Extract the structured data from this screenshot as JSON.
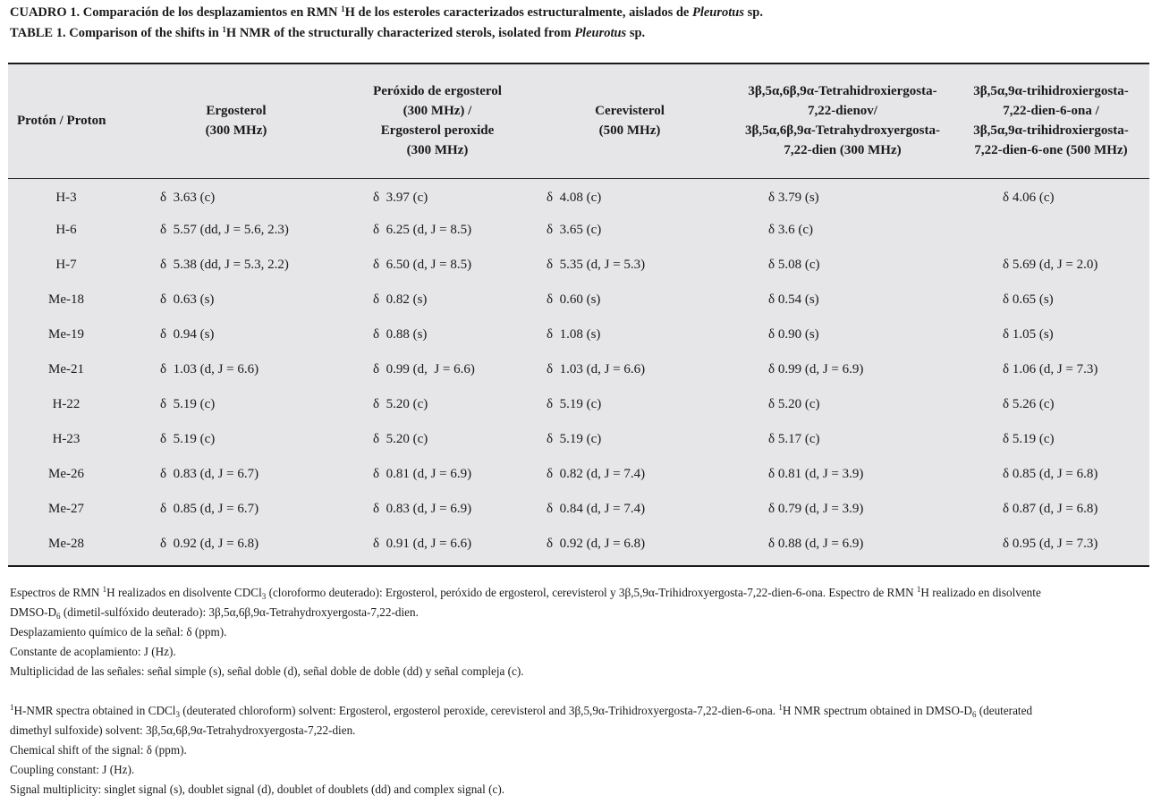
{
  "caption": {
    "es_label": "CUADRO 1.",
    "es_pre": " Comparación de los desplazamientos en RMN ",
    "es_sup": "1",
    "es_mid": "H de los esteroles caracterizados estructuralmente, aislados de ",
    "es_italic": "Pleurotus",
    "es_post": " sp.",
    "en_label": "TABLE 1.",
    "en_pre": " Comparison of the shifts in ",
    "en_sup": "1",
    "en_mid": "H NMR of the structurally characterized sterols, isolated from ",
    "en_italic": "Pleurotus",
    "en_post": " sp."
  },
  "table": {
    "headers": [
      [
        "Protón / Proton"
      ],
      [
        "Ergosterol",
        "(300 MHz)"
      ],
      [
        "Peróxido de ergosterol",
        "(300 MHz) /",
        "Ergosterol peroxide",
        "(300 MHz)"
      ],
      [
        "Cerevisterol",
        "(500 MHz)"
      ],
      [
        "3β,5α,6β,9α-Tetrahidroxiergosta-",
        "7,22-dienov/",
        "3β,5α,6β,9α-Tetrahydroxyergosta-",
        "7,22-dien (300 MHz)"
      ],
      [
        "3β,5α,9α-trihidroxiergosta-",
        "7,22-dien-6-ona /",
        "3β,5α,9α-trihidroxiergosta-",
        "7,22-dien-6-one (500 MHz)"
      ]
    ],
    "rows": [
      [
        "H-3",
        "δ  3.63 (c)",
        "δ  3.97 (c)",
        "δ  4.08 (c)",
        "δ 3.79 (s)",
        "δ 4.06 (c)"
      ],
      [
        "H-6",
        "δ  5.57 (dd, J = 5.6, 2.3)",
        "δ  6.25 (d, J = 8.5)",
        "δ  3.65 (c)",
        "δ 3.6 (c)",
        ""
      ],
      [
        "H-7",
        "δ  5.38 (dd, J = 5.3, 2.2)",
        "δ  6.50 (d, J = 8.5)",
        "δ  5.35 (d, J = 5.3)",
        "δ 5.08 (c)",
        "δ 5.69 (d, J = 2.0)"
      ],
      [
        "Me-18",
        "δ  0.63 (s)",
        "δ  0.82 (s)",
        "δ  0.60 (s)",
        "δ 0.54 (s)",
        "δ 0.65 (s)"
      ],
      [
        "Me-19",
        "δ  0.94 (s)",
        "δ  0.88 (s)",
        "δ  1.08 (s)",
        "δ 0.90 (s)",
        "δ 1.05 (s)"
      ],
      [
        "Me-21",
        "δ  1.03 (d, J = 6.6)",
        "δ  0.99 (d,  J = 6.6)",
        "δ  1.03 (d, J = 6.6)",
        "δ 0.99 (d, J = 6.9)",
        "δ 1.06 (d, J = 7.3)"
      ],
      [
        "H-22",
        "δ  5.19 (c)",
        "δ  5.20 (c)",
        "δ  5.19 (c)",
        "δ 5.20 (c)",
        "δ 5.26 (c)"
      ],
      [
        "H-23",
        "δ  5.19 (c)",
        "δ  5.20 (c)",
        "δ  5.19 (c)",
        "δ 5.17 (c)",
        "δ 5.19 (c)"
      ],
      [
        "Me-26",
        "δ  0.83 (d, J = 6.7)",
        "δ  0.81 (d, J = 6.9)",
        "δ  0.82 (d, J = 7.4)",
        "δ 0.81 (d, J = 3.9)",
        "δ 0.85 (d, J = 6.8)"
      ],
      [
        "Me-27",
        "δ  0.85 (d, J = 6.7)",
        "δ  0.83 (d, J = 6.9)",
        "δ  0.84 (d, J = 7.4)",
        "δ 0.79 (d, J = 3.9)",
        "δ 0.87 (d, J = 6.8)"
      ],
      [
        "Me-28",
        "δ  0.92 (d, J = 6.8)",
        "δ  0.91 (d, J = 6.6)",
        "δ  0.92 (d, J = 6.8)",
        "δ 0.88 (d, J = 6.9)",
        "δ 0.95 (d, J = 7.3)"
      ]
    ]
  },
  "notes_es": {
    "p1_a": "Espectros de RMN ",
    "p1_sup": "1",
    "p1_b": "H realizados en disolvente CDCl",
    "p1_sub": "3",
    "p1_c": " (cloroformo deuterado): Ergosterol, peróxido de ergosterol, cerevisterol y 3β,5,9α-Trihidroxyergosta-7,22-dien-6-ona. Espectro de RMN ",
    "p1_sup2": "1",
    "p1_d": "H realizado en disolvente",
    "p1_e": "DMSO-D",
    "p1_sub2": "6",
    "p1_f": " (dimetil-sulfóxido deuterado): 3β,5α,6β,9α-Tetrahydroxyergosta-7,22-dien.",
    "p2": "Desplazamiento químico de la señal: δ (ppm).",
    "p3": "Constante de acoplamiento: J (Hz).",
    "p4": "Multiplicidad de las señales: señal simple (s), señal doble (d), señal doble de doble (dd) y señal compleja (c)."
  },
  "notes_en": {
    "p1_sup": "1",
    "p1_a": "H-NMR spectra obtained in CDCl",
    "p1_sub": "3",
    "p1_b": " (deuterated chloroform) solvent: Ergosterol, ergosterol peroxide, cerevisterol and 3β,5,9α-Trihidroxyergosta-7,22-dien-6-ona. ",
    "p1_sup2": "1",
    "p1_c": "H NMR spectrum obtained in DMSO-D",
    "p1_sub2": "6",
    "p1_d": " (deuterated",
    "p1_e": "dimethyl sulfoxide) solvent: 3β,5α,6β,9α-Tetrahydroxyergosta-7,22-dien.",
    "p2": "Chemical shift of the signal: δ (ppm).",
    "p3": "Coupling constant: J (Hz).",
    "p4": "Signal multiplicity: singlet signal (s), doublet signal (d), doublet of doublets (dd) and complex signal (c)."
  }
}
